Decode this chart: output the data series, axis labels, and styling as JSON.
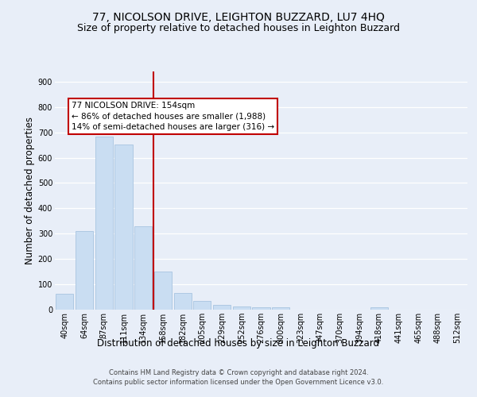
{
  "title": "77, NICOLSON DRIVE, LEIGHTON BUZZARD, LU7 4HQ",
  "subtitle": "Size of property relative to detached houses in Leighton Buzzard",
  "xlabel": "Distribution of detached houses by size in Leighton Buzzard",
  "ylabel": "Number of detached properties",
  "footer_line1": "Contains HM Land Registry data © Crown copyright and database right 2024.",
  "footer_line2": "Contains public sector information licensed under the Open Government Licence v3.0.",
  "bar_labels": [
    "40sqm",
    "64sqm",
    "87sqm",
    "111sqm",
    "134sqm",
    "158sqm",
    "182sqm",
    "205sqm",
    "229sqm",
    "252sqm",
    "276sqm",
    "300sqm",
    "323sqm",
    "347sqm",
    "370sqm",
    "394sqm",
    "418sqm",
    "441sqm",
    "465sqm",
    "488sqm",
    "512sqm"
  ],
  "bar_values": [
    62,
    310,
    682,
    652,
    330,
    150,
    65,
    35,
    20,
    12,
    10,
    10,
    0,
    0,
    0,
    0,
    8,
    0,
    0,
    0,
    0
  ],
  "bar_color": "#c9ddf2",
  "bar_edgecolor": "#a8c4e0",
  "vline_index": 5,
  "vline_color": "#c00000",
  "annotation_text": "77 NICOLSON DRIVE: 154sqm\n← 86% of detached houses are smaller (1,988)\n14% of semi-detached houses are larger (316) →",
  "annotation_box_facecolor": "#ffffff",
  "annotation_box_edgecolor": "#c00000",
  "ylim": [
    0,
    940
  ],
  "yticks": [
    0,
    100,
    200,
    300,
    400,
    500,
    600,
    700,
    800,
    900
  ],
  "bg_color": "#e8eef8",
  "axes_bg_color": "#e8eef8",
  "grid_color": "#ffffff",
  "title_fontsize": 10,
  "subtitle_fontsize": 9,
  "tick_fontsize": 7,
  "ylabel_fontsize": 8.5,
  "xlabel_fontsize": 8.5,
  "footer_fontsize": 6,
  "annotation_fontsize": 7.5
}
